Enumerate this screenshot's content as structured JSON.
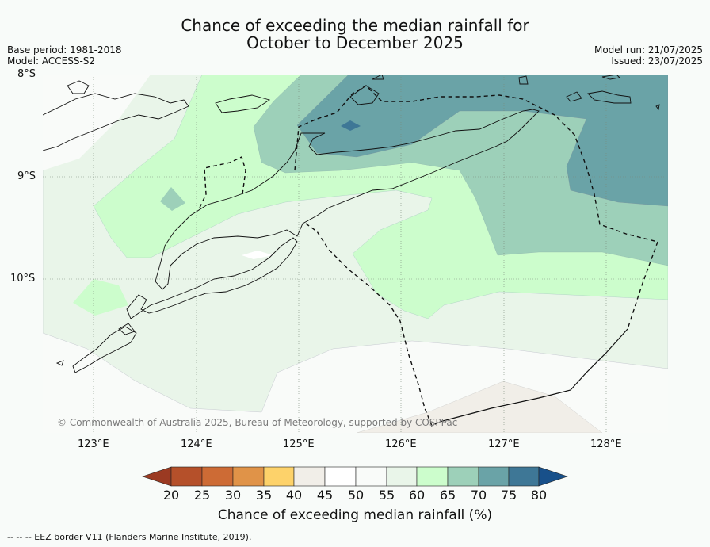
{
  "title": {
    "line1": "Chance of exceeding the median rainfall for",
    "line2": "October to December 2025"
  },
  "meta": {
    "base_period": "Base period: 1981-2018",
    "model": "Model: ACCESS-S2",
    "model_run": "Model run: 21/07/2025",
    "issued": "Issued: 23/07/2025"
  },
  "axes": {
    "latitude_labels": [
      "8°S",
      "9°S",
      "10°S"
    ],
    "longitude_labels": [
      "123°E",
      "124°E",
      "125°E",
      "126°E",
      "127°E",
      "128°E"
    ]
  },
  "colorbar": {
    "title": "Chance of exceeding median rainfall (%)",
    "ticks": [
      "20",
      "25",
      "30",
      "35",
      "40",
      "45",
      "50",
      "55",
      "60",
      "65",
      "70",
      "75",
      "80"
    ],
    "colors": [
      "#9b3a22",
      "#b5502a",
      "#cd6b35",
      "#e09348",
      "#fdd26a",
      "#f1eee8",
      "#ffffff",
      "#f9fbf9",
      "#e9f5e9",
      "#ccfdcc",
      "#9dd0b9",
      "#6aa3a7",
      "#3e7796",
      "#18508a"
    ]
  },
  "copyright": "© Commonwealth of Australia 2025, Bureau of Meteorology, supported by COSPPac",
  "footer": "--  --  -- EEZ border V11 (Flanders Marine Institute, 2019)."
}
